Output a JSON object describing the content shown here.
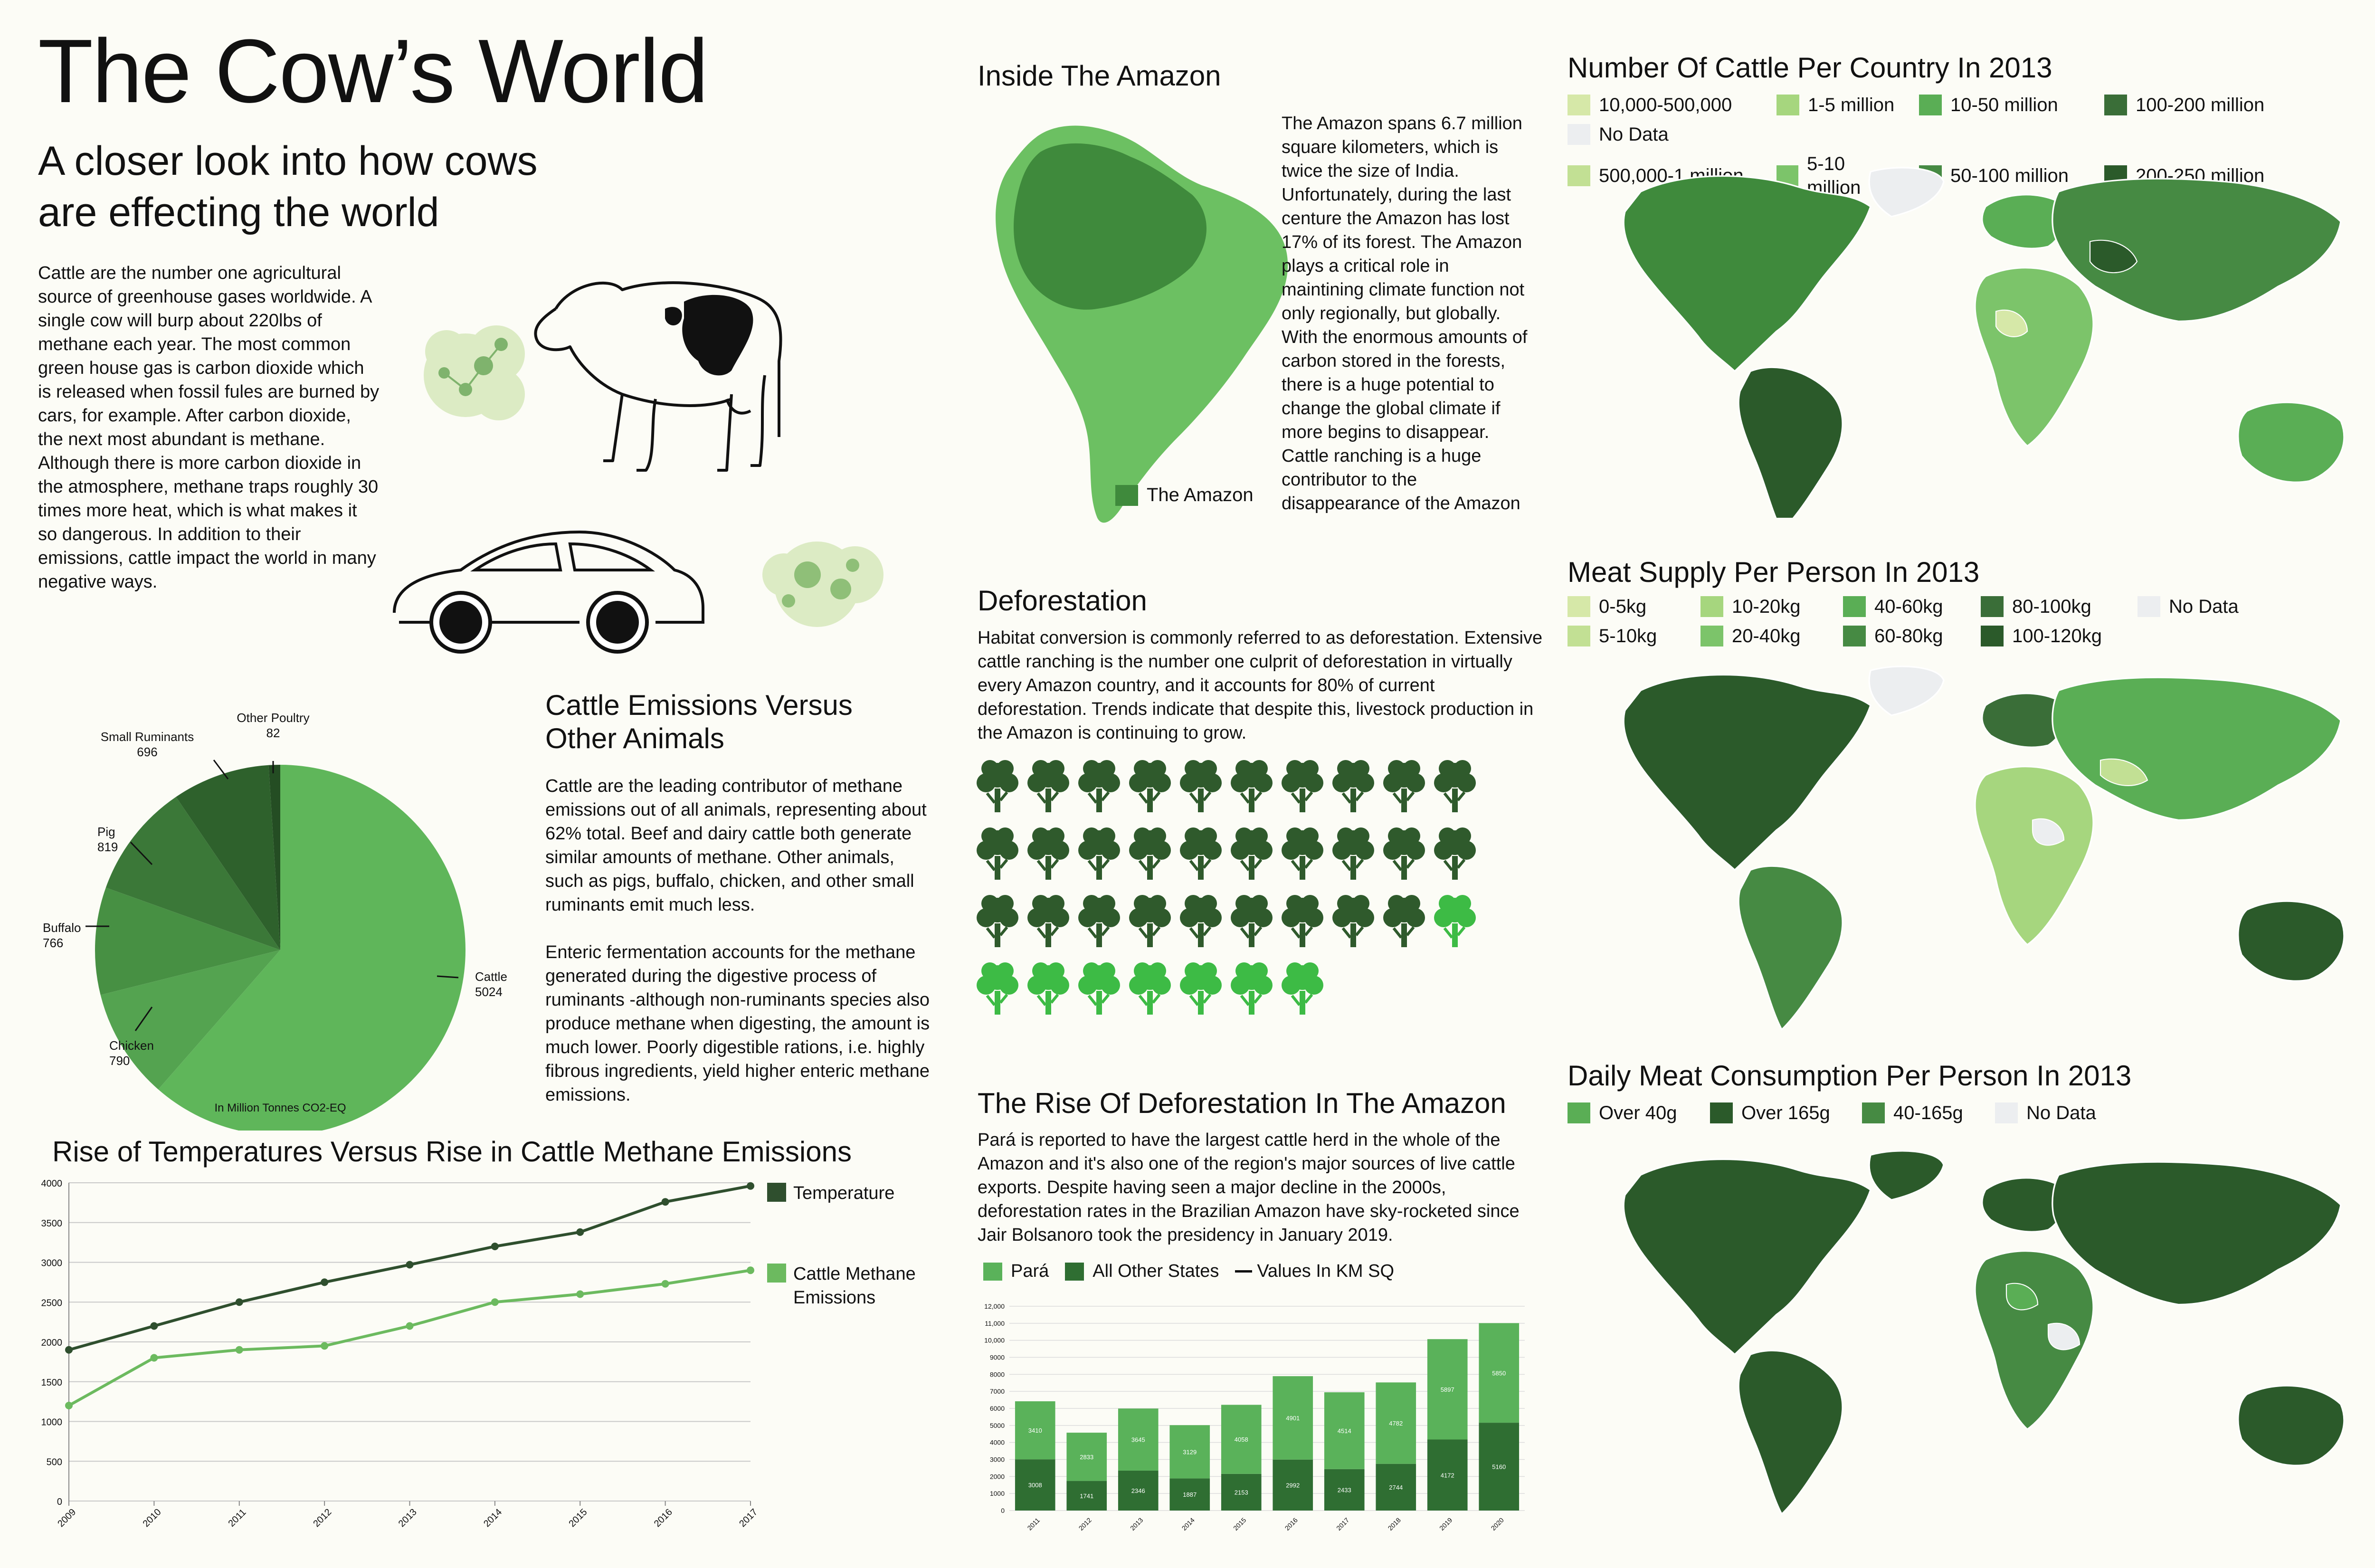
{
  "header": {
    "title": "The Cow’s World",
    "subtitle_line1": "A closer look into how cows",
    "subtitle_line2": "are effecting the world"
  },
  "intro_text": "Cattle are the number one agricultural source of greenhouse gases worldwide. A single cow will burp about 220lbs of methane each year. The most common green house gas is carbon dioxide which is released when fossil fules are burned by cars, for example. After carbon dioxide, the next most abundant is methane. Although there is more carbon dioxide in the atmosphere, methane traps roughly 30 times more heat, which is what makes it so dangerous. In addition to their emissions, cattle impact the world in many negative ways.",
  "amazon": {
    "title": "Inside The Amazon",
    "text": "The Amazon spans 6.7 million square kilometers, which is twice the size of India. Unfortunately, during the last centure the Amazon has lost 17% of its forest. The Amazon plays a critical role in maintining climate function not only regionally, but globally. With the enormous amounts of carbon stored in the forests, there is a huge potential to change the global climate if more begins to disappear. Cattle ranching is a huge contributor to the disappearance of the Amazon",
    "legend_label": "The Amazon"
  },
  "deforestation": {
    "title": "Deforestation",
    "text": "Habitat conversion is commonly referred to as deforestation. Extensive cattle ranching is the number one culprit of deforestation in virtually every Amazon country, and it accounts for 80% of current deforestation. Trends indicate that despite this, livestock production in the Amazon is continuing to grow.",
    "trees_dark": 29,
    "trees_light": 8
  },
  "emissions_section": {
    "title_line1": "Cattle Emissions Versus",
    "title_line2": "Other Animals",
    "para1": "Cattle are the leading contributor of methane emissions out of all animals, representing about 62% total. Beef and dairy cattle both generate similar amounts of methane. Other animals, such as pigs, buffalo, chicken, and other small ruminants emit much less.",
    "para2": "Enteric fermentation accounts for the methane generated during the digestive process of ruminants -although non-ruminants species also produce methane when digesting, the amount is much lower. Poorly digestible rations, i.e. highly fibrous ingredients, yield higher enteric methane emissions."
  },
  "maps": {
    "cattle": {
      "title": "Number Of Cattle Per Country In 2013",
      "legend": [
        {
          "label": "10,000-500,000",
          "color": "#d6e8a8"
        },
        {
          "label": "1-5 million",
          "color": "#a6d67e"
        },
        {
          "label": "10-50 million",
          "color": "#5aae55"
        },
        {
          "label": "100-200 million",
          "color": "#3a6e38"
        },
        {
          "label": "No Data",
          "color": "#eceef0"
        },
        {
          "label": "500,000-1 million",
          "color": "#c2e094"
        },
        {
          "label": "5-10 million",
          "color": "#7cc46a"
        },
        {
          "label": "50-100 million",
          "color": "#468a43"
        },
        {
          "label": "200-250 million",
          "color": "#2b5a2a"
        }
      ]
    },
    "meat_supply": {
      "title": "Meat Supply Per Person In 2013",
      "legend": [
        {
          "label": "0-5kg",
          "color": "#d6e8a8"
        },
        {
          "label": "10-20kg",
          "color": "#a6d67e"
        },
        {
          "label": "40-60kg",
          "color": "#5aae55"
        },
        {
          "label": "80-100kg",
          "color": "#3a6e38"
        },
        {
          "label": "No Data",
          "color": "#eceef0"
        },
        {
          "label": "5-10kg",
          "color": "#c2e094"
        },
        {
          "label": "20-40kg",
          "color": "#7cc46a"
        },
        {
          "label": "60-80kg",
          "color": "#468a43"
        },
        {
          "label": "100-120kg",
          "color": "#2b5a2a"
        }
      ]
    },
    "consumption": {
      "title": "Daily Meat Consumption Per Person In 2013",
      "legend": [
        {
          "label": "Over 40g",
          "color": "#5aae55"
        },
        {
          "label": "Over 165g",
          "color": "#2b5a2a"
        },
        {
          "label": "40-165g",
          "color": "#468a43"
        },
        {
          "label": "No Data",
          "color": "#eceef0"
        }
      ]
    }
  },
  "rise_section": {
    "title": "The Rise Of Deforestation In The Amazon",
    "text": "Pará is reported to have the largest cattle herd in the whole of the Amazon and it's also one of the region's major sources of live cattle exports. Despite having seen a major decline in the 2000s, deforestation rates in the Brazilian Amazon have sky-rocketed since Jair Bolsanoro took the presidency in January 2019."
  },
  "colors": {
    "pie_cattle": "#5fb65a",
    "pie_chicken": "#54a350",
    "pie_buffalo": "#479043",
    "pie_pig": "#3b7838",
    "pie_small": "#2e612c",
    "pie_poultry": "#244d23",
    "line_temp": "#2f4f2e",
    "line_cattle": "#6cba5f",
    "bar_para": "#5ab25a",
    "bar_other": "#2f6e32",
    "tree_dark": "#2f5a2c",
    "tree_light": "#3dbb45"
  },
  "chart_data": [
    {
      "type": "pie",
      "title": "",
      "caption": "In Million Tonnes CO2-EQ",
      "slices": [
        {
          "label": "Cattle",
          "value": 5024
        },
        {
          "label": "Chicken",
          "value": 790
        },
        {
          "label": "Buffalo",
          "value": 766
        },
        {
          "label": "Pig",
          "value": 819
        },
        {
          "label": "Small Ruminants",
          "value": 696
        },
        {
          "label": "Other Poultry",
          "value": 82
        }
      ]
    },
    {
      "type": "line",
      "title": "Rise of Temperatures Versus Rise in Cattle Methane Emissions",
      "x": [
        "2009",
        "2010",
        "2011",
        "2012",
        "2013",
        "2014",
        "2015",
        "2016",
        "2017"
      ],
      "ylim": [
        0,
        4000
      ],
      "yticks": [
        0,
        500,
        1000,
        1500,
        2000,
        2500,
        3000,
        3500,
        4000
      ],
      "grid": true,
      "legend": "right",
      "series": [
        {
          "name": "Temperature",
          "values": [
            1900,
            2200,
            2500,
            2750,
            2970,
            3200,
            3380,
            3760,
            3960
          ]
        },
        {
          "name": "Cattle Methane Emissions",
          "values": [
            1200,
            1800,
            1900,
            1950,
            2200,
            2500,
            2600,
            2730,
            2900
          ]
        }
      ]
    },
    {
      "type": "bar",
      "stacked": true,
      "title": "",
      "categories": [
        "2011",
        "2012",
        "2013",
        "2014",
        "2015",
        "2016",
        "2017",
        "2018",
        "2019",
        "2020"
      ],
      "ylim": [
        0,
        12000
      ],
      "yticks": [
        "0",
        "1000",
        "2000",
        "3000",
        "4000",
        "5000",
        "6000",
        "7000",
        "8000",
        "9000",
        "10,000",
        "11,000",
        "12,000"
      ],
      "legend": [
        "Pará",
        "All Other States",
        "Values In KM SQ"
      ],
      "series": [
        {
          "name": "All Other States",
          "values": [
            3008,
            1741,
            2346,
            1887,
            2153,
            2992,
            2433,
            2744,
            4172,
            5160
          ]
        },
        {
          "name": "Pará",
          "values": [
            3410,
            2833,
            3645,
            3129,
            4058,
            4901,
            4514,
            4782,
            5897,
            5850
          ]
        }
      ]
    }
  ]
}
